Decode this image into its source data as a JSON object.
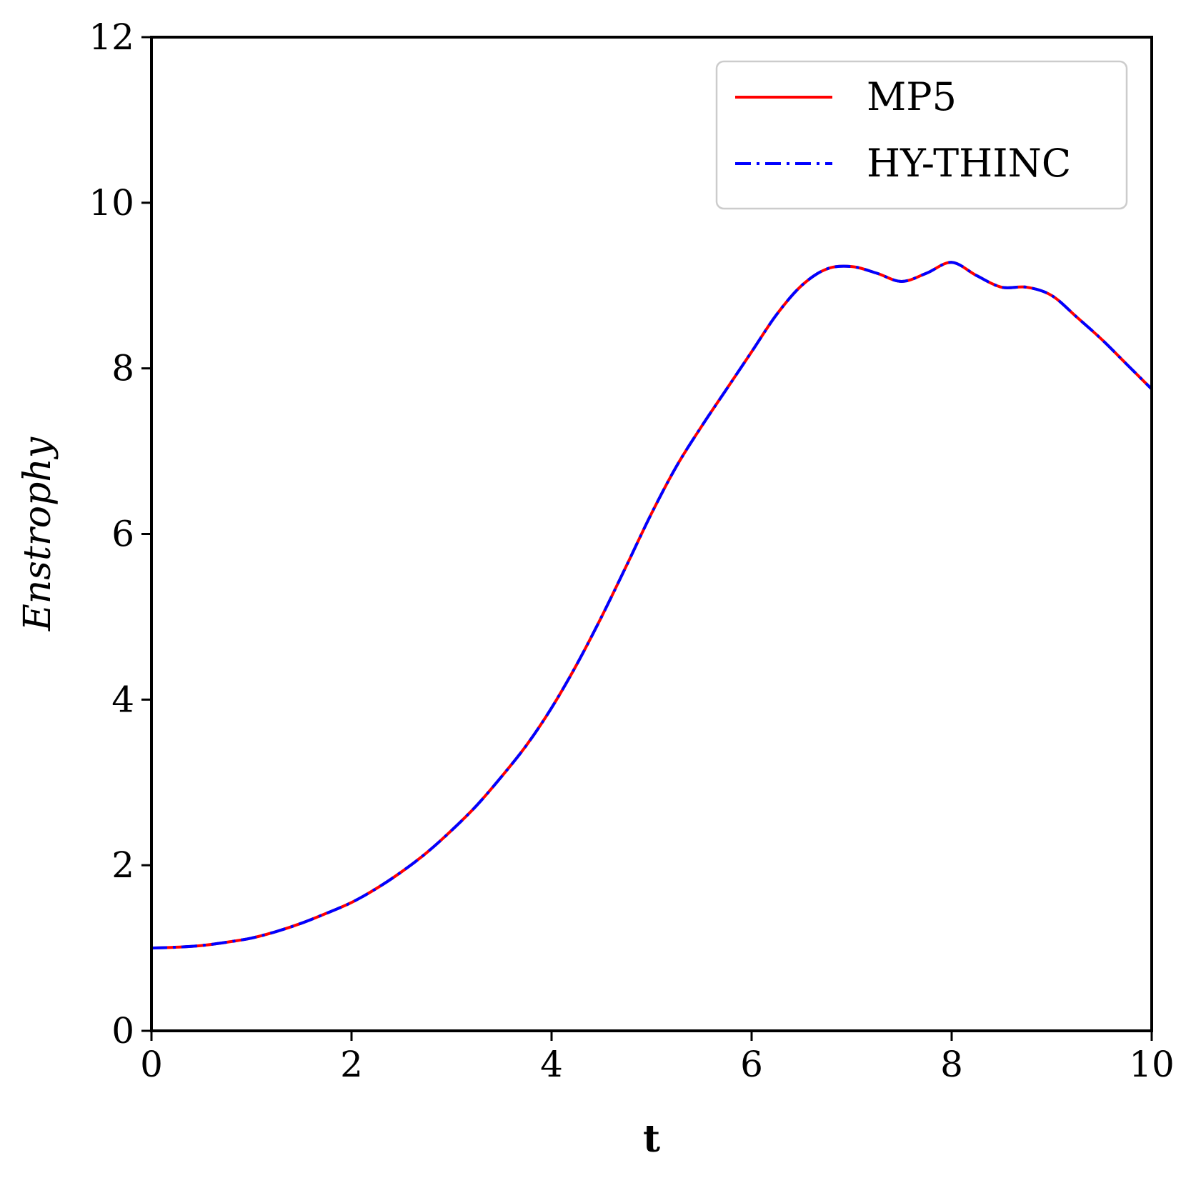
{
  "chart_data": {
    "type": "line",
    "xlabel": "t",
    "ylabel": "Enstrophy",
    "xlim": [
      0,
      10
    ],
    "ylim": [
      0,
      12
    ],
    "xticks": [
      "0",
      "2",
      "4",
      "6",
      "8",
      "10"
    ],
    "yticks": [
      "0",
      "2",
      "4",
      "6",
      "8",
      "10",
      "12"
    ],
    "grid": false,
    "legend_position": "top-right",
    "x": [
      0,
      0.25,
      0.5,
      0.75,
      1.0,
      1.25,
      1.5,
      1.75,
      2.0,
      2.25,
      2.5,
      2.75,
      3.0,
      3.25,
      3.5,
      3.75,
      4.0,
      4.25,
      4.5,
      4.75,
      5.0,
      5.25,
      5.5,
      5.75,
      6.0,
      6.25,
      6.5,
      6.75,
      7.0,
      7.25,
      7.5,
      7.75,
      8.0,
      8.25,
      8.5,
      8.75,
      9.0,
      9.25,
      9.5,
      9.75,
      10.0
    ],
    "series": [
      {
        "name": "MP5",
        "color": "#ff0000",
        "style": "solid",
        "values": [
          1.0,
          1.01,
          1.03,
          1.07,
          1.12,
          1.2,
          1.3,
          1.42,
          1.55,
          1.72,
          1.92,
          2.15,
          2.42,
          2.72,
          3.07,
          3.45,
          3.9,
          4.42,
          5.0,
          5.62,
          6.25,
          6.82,
          7.3,
          7.75,
          8.2,
          8.65,
          9.0,
          9.2,
          9.23,
          9.15,
          9.05,
          9.15,
          9.28,
          9.12,
          8.98,
          8.98,
          8.88,
          8.62,
          8.35,
          8.05,
          7.75
        ]
      },
      {
        "name": "HY-THINC",
        "color": "#0000ff",
        "style": "dashdot",
        "values": [
          1.0,
          1.01,
          1.03,
          1.07,
          1.12,
          1.2,
          1.3,
          1.42,
          1.55,
          1.72,
          1.92,
          2.15,
          2.42,
          2.72,
          3.07,
          3.45,
          3.9,
          4.42,
          5.0,
          5.62,
          6.25,
          6.82,
          7.3,
          7.75,
          8.2,
          8.65,
          9.0,
          9.2,
          9.23,
          9.15,
          9.05,
          9.15,
          9.28,
          9.12,
          8.98,
          8.98,
          8.88,
          8.62,
          8.35,
          8.05,
          7.75
        ]
      }
    ]
  }
}
